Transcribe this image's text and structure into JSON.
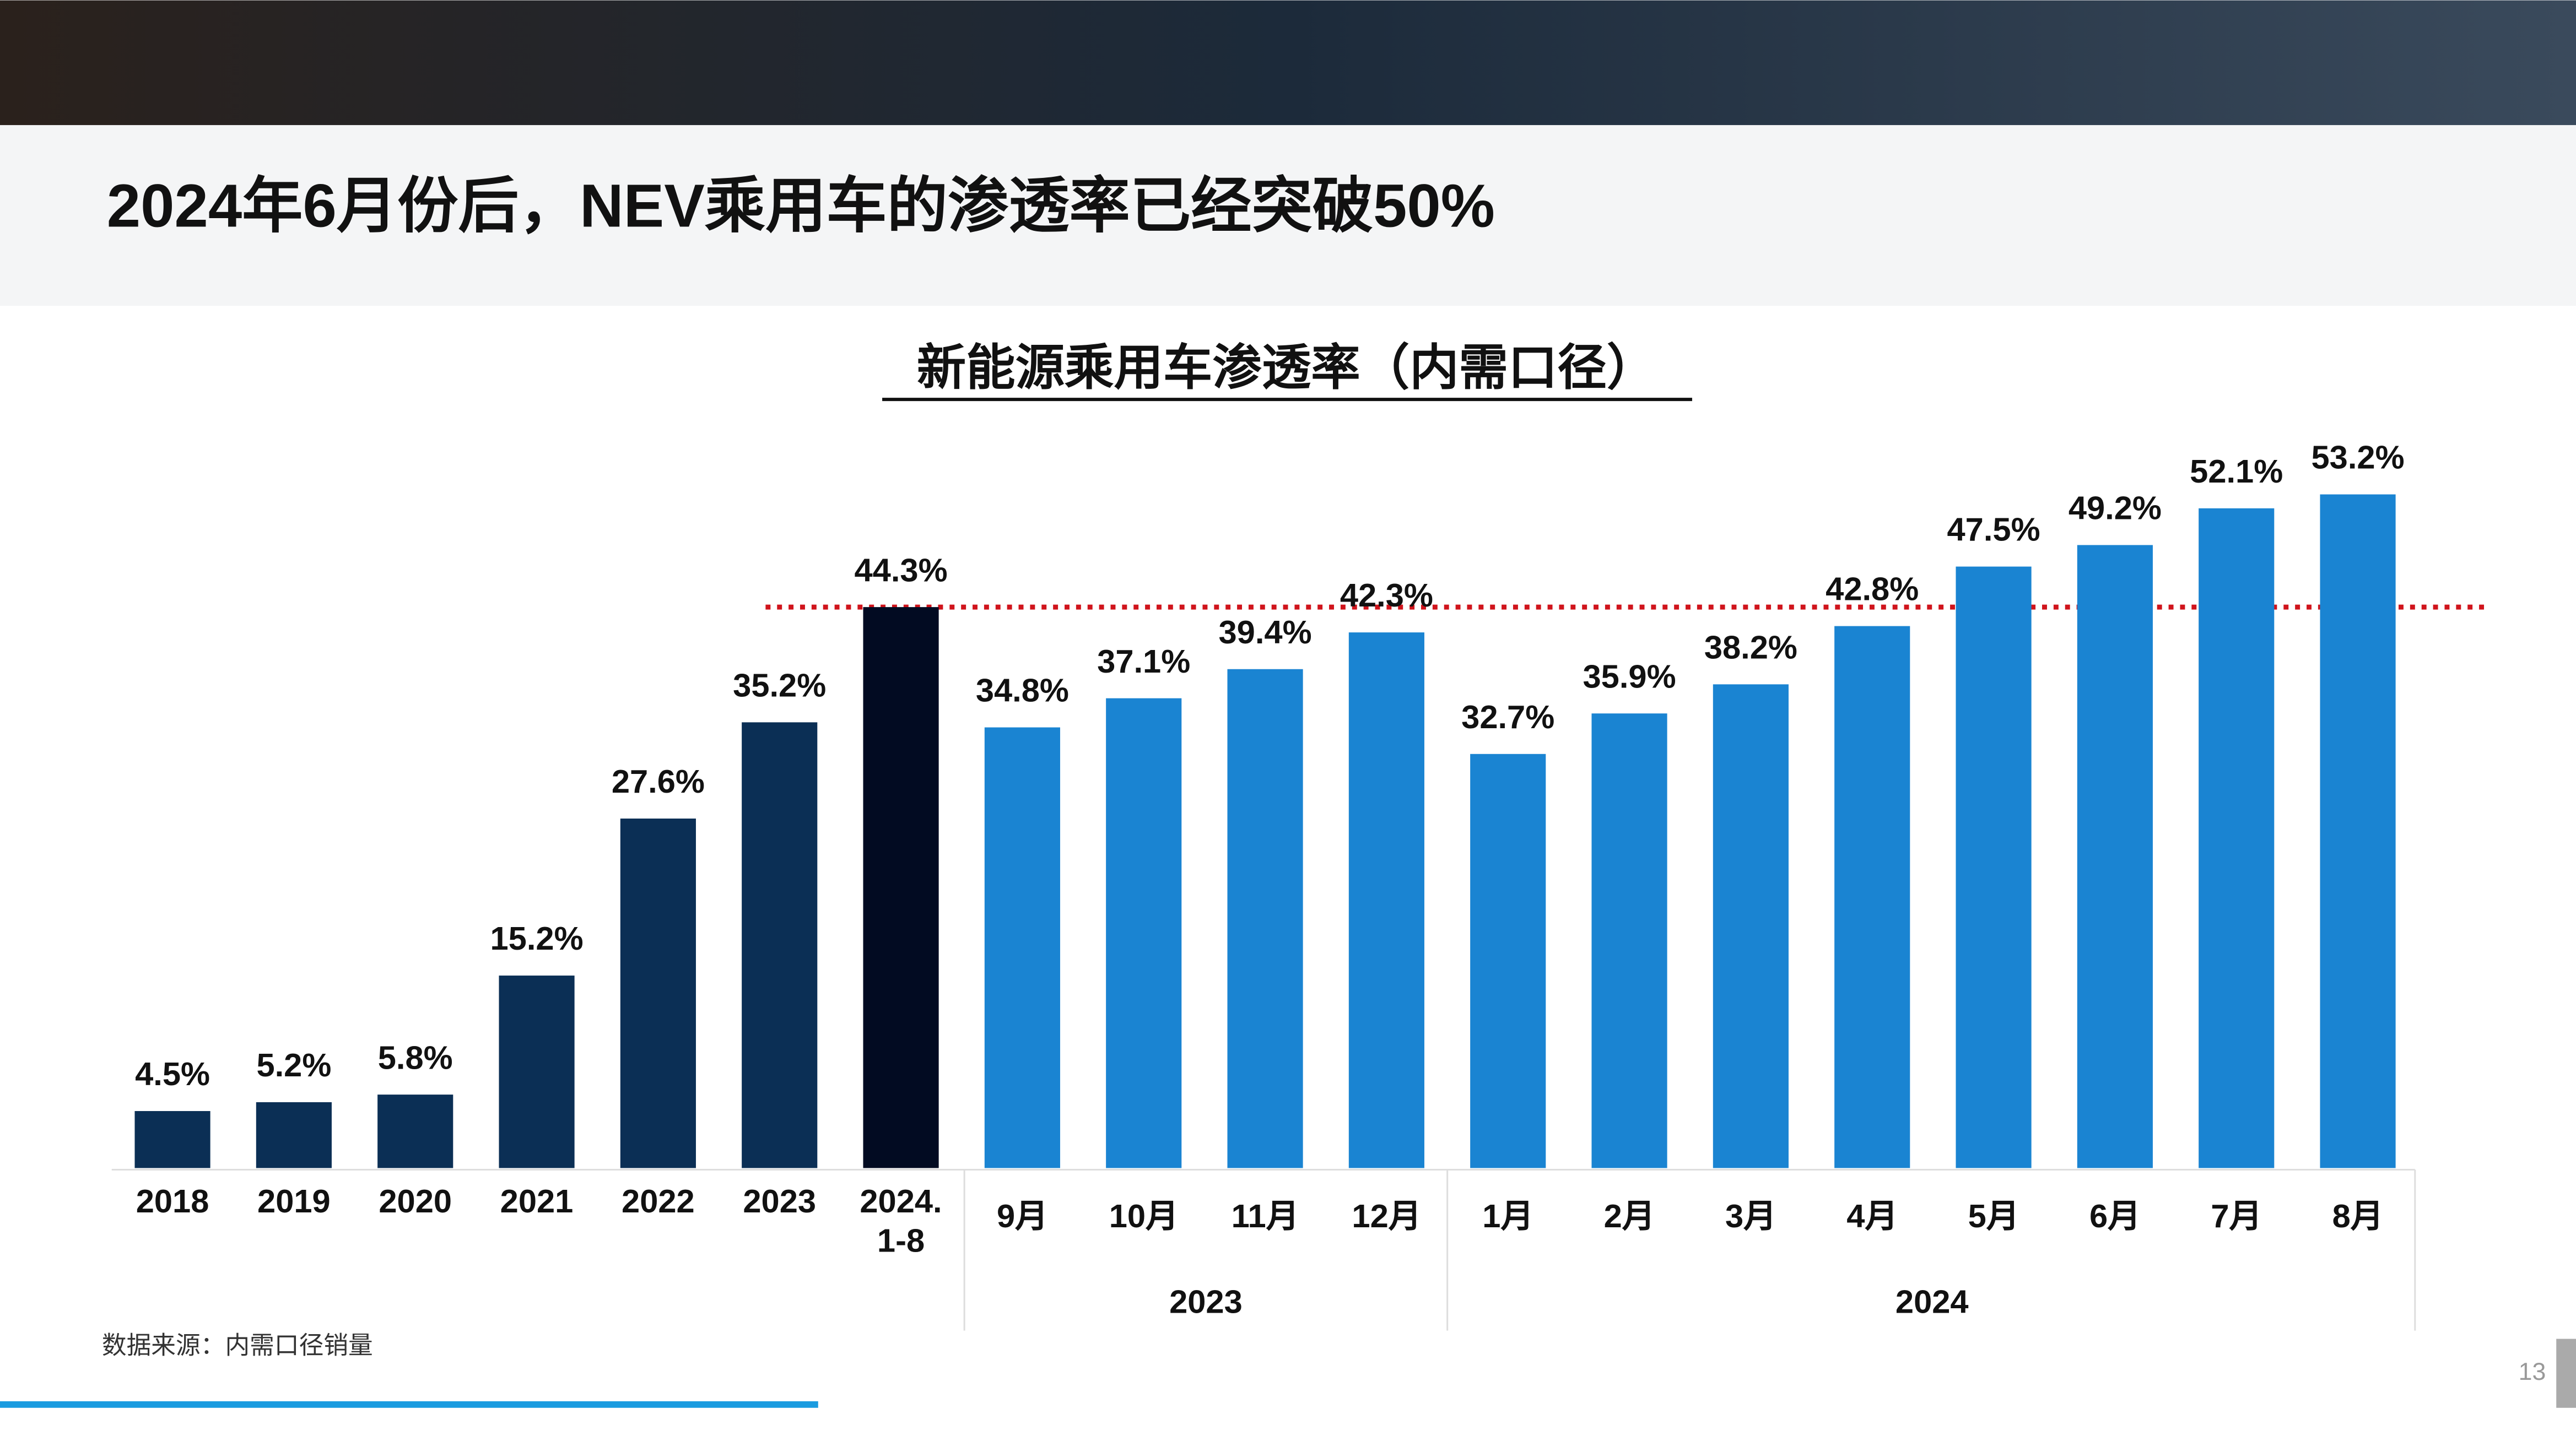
{
  "title": "2024年6月份后，NEV乘用车的渗透率已经突破50%",
  "source": "数据来源：内需口径销量",
  "page_number": "13",
  "chart_data": {
    "type": "bar",
    "title": "新能源乘用车渗透率（内需口径）",
    "categories": [
      "2018",
      "2019",
      "2020",
      "2021",
      "2022",
      "2023",
      "2024.\n1-8",
      "9月",
      "10月",
      "11月",
      "12月",
      "1月",
      "2月",
      "3月",
      "4月",
      "5月",
      "6月",
      "7月",
      "8月"
    ],
    "values": [
      4.5,
      5.2,
      5.8,
      15.2,
      27.6,
      35.2,
      44.3,
      34.8,
      37.1,
      39.4,
      42.3,
      32.7,
      35.9,
      38.2,
      42.8,
      47.5,
      49.2,
      52.1,
      53.2
    ],
    "value_labels": [
      "4.5%",
      "5.2%",
      "5.8%",
      "15.2%",
      "27.6%",
      "35.2%",
      "44.3%",
      "34.8%",
      "37.1%",
      "39.4%",
      "42.3%",
      "32.7%",
      "35.9%",
      "38.2%",
      "42.8%",
      "47.5%",
      "49.2%",
      "52.1%",
      "53.2%"
    ],
    "colors": [
      "#0b2f55",
      "#0b2f55",
      "#0b2f55",
      "#0b2f55",
      "#0b2f55",
      "#0b2f55",
      "#020b22",
      "#1a84d2",
      "#1a84d2",
      "#1a84d2",
      "#1a84d2",
      "#1a84d2",
      "#1a84d2",
      "#1a84d2",
      "#1a84d2",
      "#1a84d2",
      "#1a84d2",
      "#1a84d2",
      "#1a84d2"
    ],
    "group_labels": [
      "2023",
      "2024"
    ],
    "reference_line": {
      "value": 44.3,
      "color": "#d0141c"
    }
  }
}
